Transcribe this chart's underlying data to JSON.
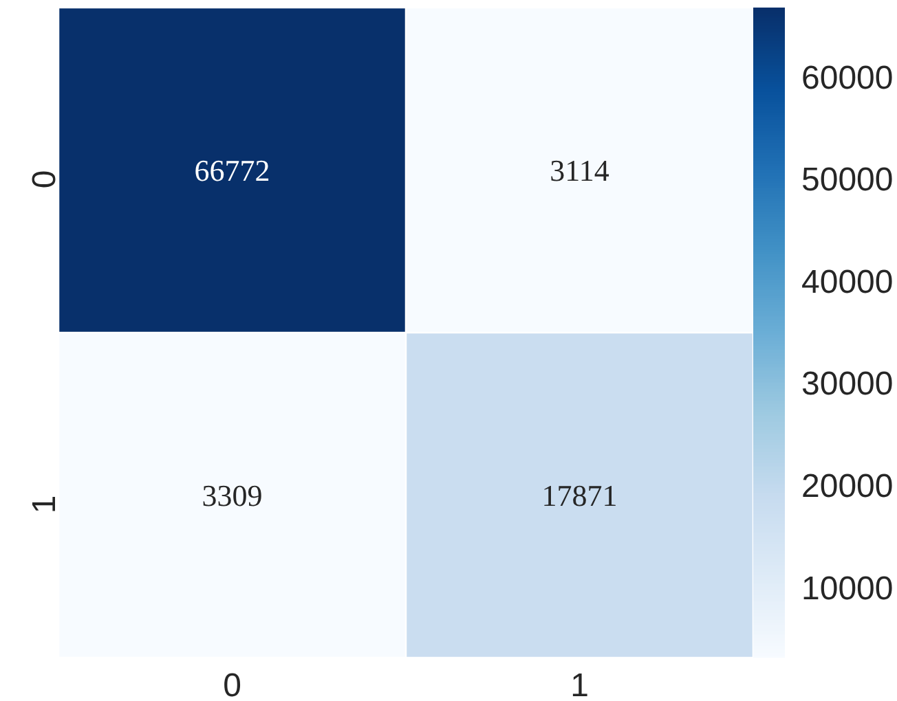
{
  "chart_data": {
    "type": "heatmap",
    "categories": [
      "0",
      "1"
    ],
    "y_categories": [
      "0",
      "1"
    ],
    "cells": [
      [
        66772,
        3114
      ],
      [
        3309,
        17871
      ]
    ],
    "clim": [
      3114,
      66772
    ],
    "cticks": [
      10000,
      20000,
      30000,
      40000,
      50000,
      60000
    ],
    "data_labels": true
  }
}
